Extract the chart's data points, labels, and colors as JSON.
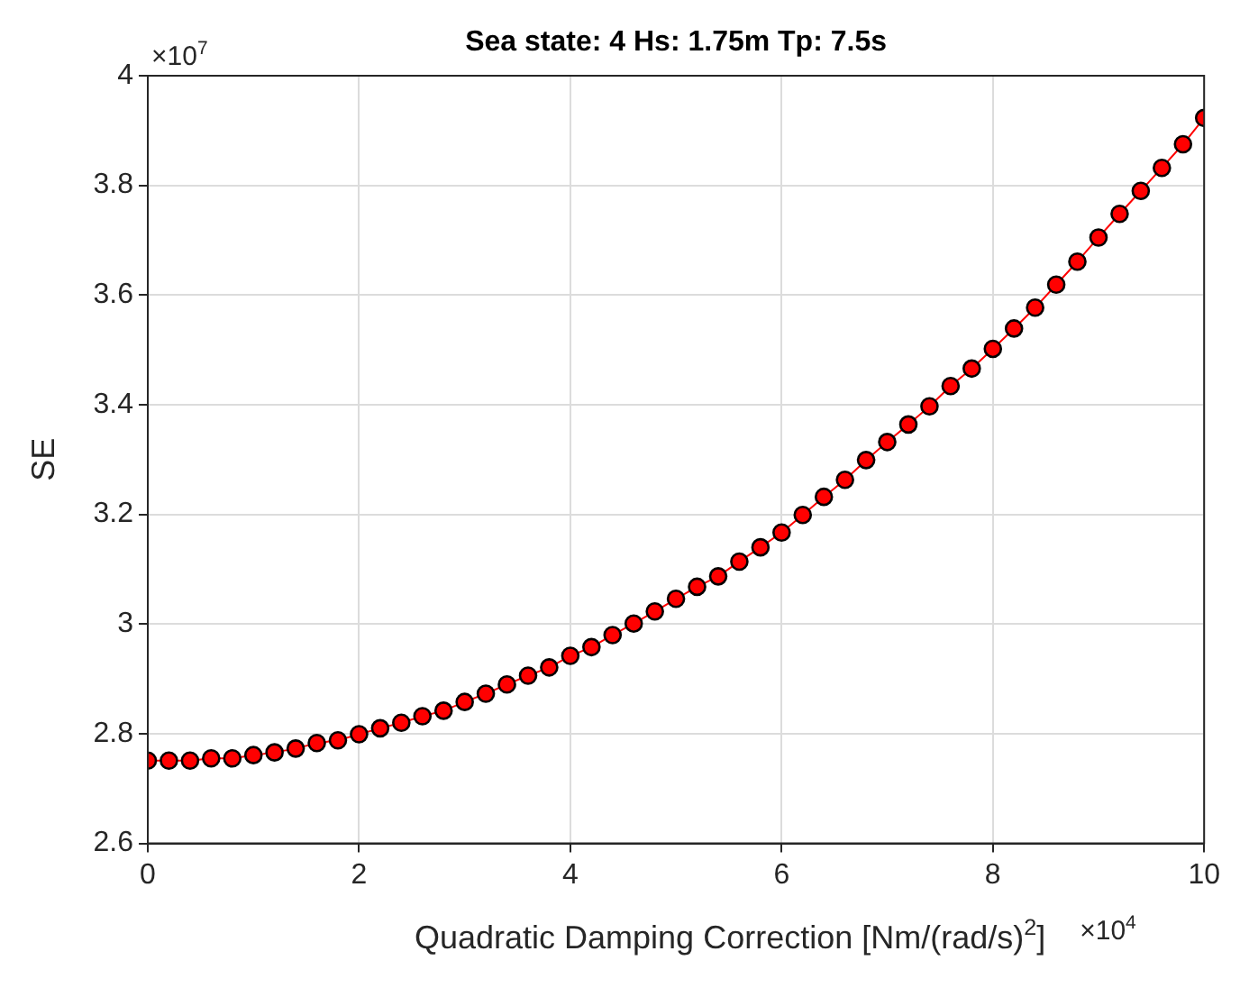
{
  "chart_data": {
    "type": "line",
    "title": "Sea state: 4 Hs: 1.75m Tp: 7.5s",
    "xlabel": "Quadratic Damping Correction [Nm/(rad/s)$^{2}$]",
    "ylabel": "SE",
    "annotations": [
      "×10$^{7}$",
      "×10$^{4}$"
    ],
    "x": [
      0,
      0.2,
      0.4,
      0.6,
      0.8,
      1,
      1.2,
      1.4,
      1.6,
      1.8,
      2,
      2.2,
      2.4,
      2.6,
      2.8,
      3,
      3.2,
      3.4,
      3.6,
      3.8,
      4,
      4.2,
      4.4,
      4.6,
      4.8,
      5,
      5.2,
      5.4,
      5.6,
      5.8,
      6,
      6.2,
      6.4,
      6.6,
      6.8,
      7,
      7.2,
      7.4,
      7.6,
      7.8,
      8,
      8.2,
      8.4,
      8.6,
      8.8,
      9,
      9.2,
      9.4,
      9.6,
      9.8,
      10
    ],
    "series": [
      {
        "color": "#ff0000",
        "values": [
          2.751,
          2.751,
          2.751,
          2.755,
          2.755,
          2.761,
          2.766,
          2.773,
          2.783,
          2.788,
          2.799,
          2.81,
          2.82,
          2.832,
          2.842,
          2.858,
          2.873,
          2.89,
          2.906,
          2.921,
          2.942,
          2.958,
          2.98,
          3.001,
          3.023,
          3.046,
          3.068,
          3.087,
          3.114,
          3.14,
          3.167,
          3.199,
          3.232,
          3.263,
          3.299,
          3.332,
          3.364,
          3.397,
          3.434,
          3.466,
          3.502,
          3.539,
          3.577,
          3.619,
          3.661,
          3.705,
          3.748,
          3.79,
          3.832,
          3.875,
          3.923
        ]
      }
    ],
    "xlim": [
      0,
      10
    ],
    "xticks": [
      0,
      2,
      4,
      6,
      8,
      10
    ],
    "ylim": [
      2.6,
      4
    ],
    "yticks": [
      2.6,
      2.8,
      3,
      3.2,
      3.4,
      3.6,
      3.8,
      4
    ],
    "grid": true,
    "legend": false,
    "marker": "circle",
    "line_style": "solid"
  }
}
